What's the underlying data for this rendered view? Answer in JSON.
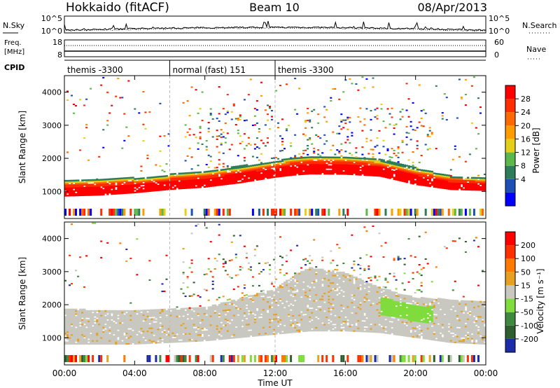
{
  "header": {
    "station": "Hokkaido (fitACF)",
    "beam": "Beam 10",
    "date": "08/Apr/2013"
  },
  "noise_panel": {
    "left_label": "N.Sky",
    "right_label": "N.Search",
    "left_ticks": [
      "10^5",
      "10^0"
    ],
    "right_ticks": [
      "10^5",
      "10^0"
    ]
  },
  "freq_panel": {
    "left_label_1": "Freq.",
    "left_label_2": "[MHz]",
    "right_label": "Nave",
    "left_ticks": [
      "18",
      "8"
    ],
    "right_ticks": [
      "60",
      "0"
    ]
  },
  "cpid_panel": {
    "label": "CPID",
    "segments": [
      {
        "name": "themis -3300",
        "start_h": 0,
        "end_h": 6
      },
      {
        "name": "normal (fast) 151",
        "start_h": 6,
        "end_h": 12
      },
      {
        "name": "themis -3300",
        "start_h": 12,
        "end_h": 24
      }
    ]
  },
  "power_panel": {
    "ylabel": "Slant Range [km]",
    "yticks": [
      "4000",
      "3000",
      "2000",
      "1000"
    ],
    "colorbar_label": "Power [dB]",
    "colorbar_ticks": [
      "28",
      "24",
      "20",
      "16",
      "12",
      "8",
      "4"
    ],
    "colors": [
      "#0000ff",
      "#1e4fb5",
      "#2e7d5a",
      "#5cb84a",
      "#e6cf1a",
      "#ff9c00",
      "#ff6a00",
      "#ff2d00",
      "#ff0000"
    ]
  },
  "velocity_panel": {
    "ylabel": "Slant Range [km]",
    "yticks": [
      "4000",
      "3000",
      "2000",
      "1000"
    ],
    "colorbar_label": "Velocity [m s⁻¹]",
    "colorbar_ticks": [
      "200",
      "100",
      "50",
      "15",
      "-15",
      "-50",
      "-100",
      "-200"
    ],
    "colors": [
      "#1c2ca8",
      "#2f5f2f",
      "#3f8a3f",
      "#7fdc3c",
      "#c8c8c0",
      "#e8a020",
      "#ff7a00",
      "#ff3000",
      "#ff0000"
    ],
    "ground_scatter_color": "#c8c8c0"
  },
  "xaxis": {
    "label": "Time UT",
    "ticks": [
      "00:00",
      "04:00",
      "08:00",
      "12:00",
      "16:00",
      "20:00",
      "00:00"
    ]
  },
  "chart_data": {
    "type": "heatmap",
    "title": "Hokkaido (fitACF)  Beam 10  08/Apr/2013",
    "xlabel": "Time UT",
    "ylabel": "Slant Range [km]",
    "xlim_hours": [
      0,
      24
    ],
    "ylim_km": [
      180,
      4500
    ],
    "grid": false,
    "legend": "colorbar-right",
    "power_colorbar_db": [
      4,
      8,
      12,
      16,
      20,
      24,
      28
    ],
    "velocity_colorbar_ms": [
      -200,
      -100,
      -50,
      -15,
      15,
      50,
      100,
      200
    ],
    "power_band_km": {
      "hours": [
        0,
        2,
        4,
        6,
        8,
        10,
        12,
        13,
        14,
        16,
        18,
        20,
        22,
        24
      ],
      "lower": [
        850,
        880,
        950,
        1050,
        1120,
        1250,
        1420,
        1480,
        1520,
        1510,
        1450,
        1200,
        1050,
        1020
      ],
      "upper": [
        1300,
        1350,
        1400,
        1500,
        1600,
        1750,
        1900,
        2000,
        2050,
        2050,
        1950,
        1700,
        1450,
        1400
      ]
    },
    "ground_scatter_band_km": {
      "hours": [
        0,
        4,
        8,
        12,
        13,
        14,
        16,
        18,
        20,
        22,
        24
      ],
      "lower": [
        800,
        800,
        900,
        1100,
        1150,
        1200,
        1200,
        1150,
        1000,
        850,
        800
      ],
      "upper": [
        1850,
        1800,
        1900,
        2450,
        2900,
        3100,
        2950,
        2500,
        2200,
        2150,
        2100
      ]
    },
    "cpid": [
      {
        "program": "themis -3300",
        "start_h": 0,
        "end_h": 6
      },
      {
        "program": "normal (fast) 151",
        "start_h": 6,
        "end_h": 12
      },
      {
        "program": "themis -3300",
        "start_h": 12,
        "end_h": 24
      }
    ]
  }
}
